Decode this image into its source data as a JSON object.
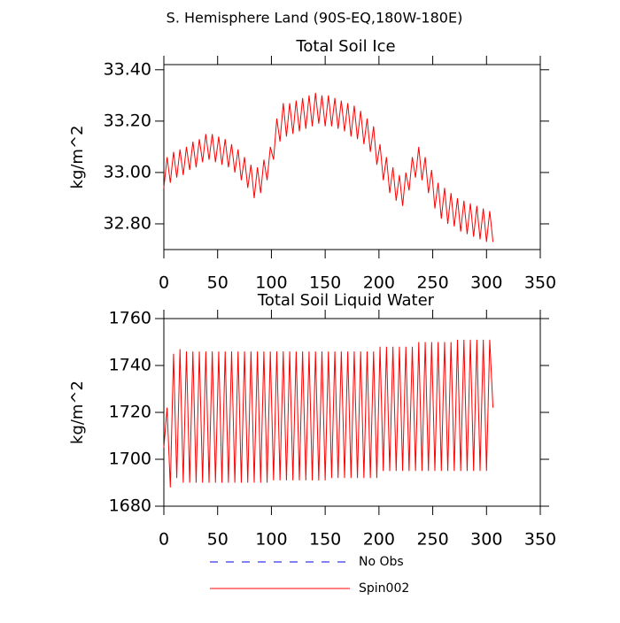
{
  "title": "S. Hemisphere Land (90S-EQ,180W-180E)",
  "chart_data": [
    {
      "type": "line",
      "title": "Total Soil Ice",
      "ylabel": "kg/m^2",
      "xlim": [
        0,
        350
      ],
      "xticks": [
        0,
        50,
        100,
        150,
        200,
        250,
        300,
        350
      ],
      "ylim": [
        32.7,
        33.42
      ],
      "yticks": [
        {
          "value": 32.8,
          "label": "32.80"
        },
        {
          "value": 33.0,
          "label": "33.00"
        },
        {
          "value": 33.2,
          "label": "33.20"
        },
        {
          "value": 33.4,
          "label": "33.40"
        }
      ],
      "x": [
        0,
        3,
        6,
        9,
        12,
        15,
        18,
        21,
        24,
        27,
        30,
        33,
        36,
        39,
        42,
        45,
        48,
        51,
        54,
        57,
        60,
        63,
        66,
        69,
        72,
        75,
        78,
        81,
        84,
        87,
        90,
        93,
        96,
        99,
        102,
        105,
        108,
        111,
        114,
        117,
        120,
        123,
        126,
        129,
        132,
        135,
        138,
        141,
        144,
        147,
        150,
        153,
        156,
        159,
        162,
        165,
        168,
        171,
        174,
        177,
        180,
        183,
        186,
        189,
        192,
        195,
        198,
        201,
        204,
        207,
        210,
        213,
        216,
        219,
        222,
        225,
        228,
        231,
        234,
        237,
        240,
        243,
        246,
        249,
        252,
        255,
        258,
        261,
        264,
        267,
        270,
        273,
        276,
        279,
        282,
        285,
        288,
        291,
        294,
        297,
        300,
        303,
        306
      ],
      "series": [
        {
          "name": "Spin002",
          "color": "#ff0000",
          "values": [
            32.94,
            33.06,
            32.96,
            33.08,
            32.98,
            33.09,
            32.99,
            33.1,
            33.01,
            33.12,
            33.02,
            33.13,
            33.04,
            33.15,
            33.05,
            33.15,
            33.04,
            33.14,
            33.03,
            33.13,
            33.02,
            33.11,
            33.0,
            33.09,
            32.97,
            33.06,
            32.94,
            33.03,
            32.9,
            33.02,
            32.92,
            33.05,
            32.97,
            33.1,
            33.05,
            33.21,
            33.12,
            33.27,
            33.14,
            33.27,
            33.15,
            33.28,
            33.16,
            33.29,
            33.17,
            33.3,
            33.18,
            33.31,
            33.19,
            33.3,
            33.18,
            33.3,
            33.18,
            33.29,
            33.17,
            33.28,
            33.16,
            33.27,
            33.14,
            33.26,
            33.13,
            33.24,
            33.11,
            33.21,
            33.08,
            33.18,
            33.03,
            33.11,
            32.97,
            33.06,
            32.92,
            33.02,
            32.89,
            32.99,
            32.87,
            33.0,
            32.93,
            33.06,
            32.98,
            33.1,
            32.97,
            33.06,
            32.92,
            33.01,
            32.86,
            32.96,
            32.82,
            32.94,
            32.8,
            32.92,
            32.79,
            32.9,
            32.77,
            32.89,
            32.76,
            32.88,
            32.75,
            32.87,
            32.74,
            32.86,
            32.73,
            32.85,
            32.73
          ]
        }
      ]
    },
    {
      "type": "line",
      "title": "Total Soil Liquid Water",
      "ylabel": "kg/m^2",
      "xlim": [
        0,
        350
      ],
      "xticks": [
        0,
        50,
        100,
        150,
        200,
        250,
        300,
        350
      ],
      "ylim": [
        1680,
        1760
      ],
      "yticks": [
        1680,
        1700,
        1720,
        1740,
        1760
      ],
      "x": [
        0,
        3,
        6,
        9,
        12,
        15,
        18,
        21,
        24,
        27,
        30,
        33,
        36,
        39,
        42,
        45,
        48,
        51,
        54,
        57,
        60,
        63,
        66,
        69,
        72,
        75,
        78,
        81,
        84,
        87,
        90,
        93,
        96,
        99,
        102,
        105,
        108,
        111,
        114,
        117,
        120,
        123,
        126,
        129,
        132,
        135,
        138,
        141,
        144,
        147,
        150,
        153,
        156,
        159,
        162,
        165,
        168,
        171,
        174,
        177,
        180,
        183,
        186,
        189,
        192,
        195,
        198,
        201,
        204,
        207,
        210,
        213,
        216,
        219,
        222,
        225,
        228,
        231,
        234,
        237,
        240,
        243,
        246,
        249,
        252,
        255,
        258,
        261,
        264,
        267,
        270,
        273,
        276,
        279,
        282,
        285,
        288,
        291,
        294,
        297,
        300,
        303,
        306
      ],
      "series": [
        {
          "name": "Spin002",
          "color": "#ff0000",
          "values": [
            1705,
            1722,
            1688,
            1745,
            1692,
            1747,
            1690,
            1746,
            1690,
            1746,
            1690,
            1746,
            1690,
            1746,
            1690,
            1746,
            1690,
            1746,
            1690,
            1746,
            1690,
            1746,
            1690,
            1746,
            1690,
            1746,
            1690,
            1746,
            1690,
            1746,
            1690,
            1746,
            1690,
            1746,
            1691,
            1746,
            1691,
            1746,
            1691,
            1746,
            1691,
            1746,
            1691,
            1746,
            1691,
            1746,
            1691,
            1746,
            1691,
            1746,
            1691,
            1746,
            1692,
            1746,
            1692,
            1746,
            1692,
            1746,
            1692,
            1746,
            1692,
            1746,
            1692,
            1746,
            1692,
            1746,
            1692,
            1748,
            1695,
            1748,
            1695,
            1748,
            1695,
            1748,
            1695,
            1748,
            1695,
            1748,
            1695,
            1750,
            1695,
            1750,
            1695,
            1750,
            1695,
            1750,
            1695,
            1750,
            1695,
            1750,
            1695,
            1751,
            1695,
            1751,
            1695,
            1751,
            1695,
            1751,
            1695,
            1751,
            1695,
            1751,
            1722
          ]
        }
      ]
    }
  ],
  "legend": [
    {
      "name": "No Obs",
      "color": "#0000ff",
      "dashed": true
    },
    {
      "name": "Spin002",
      "color": "#ff0000",
      "dashed": false
    }
  ]
}
